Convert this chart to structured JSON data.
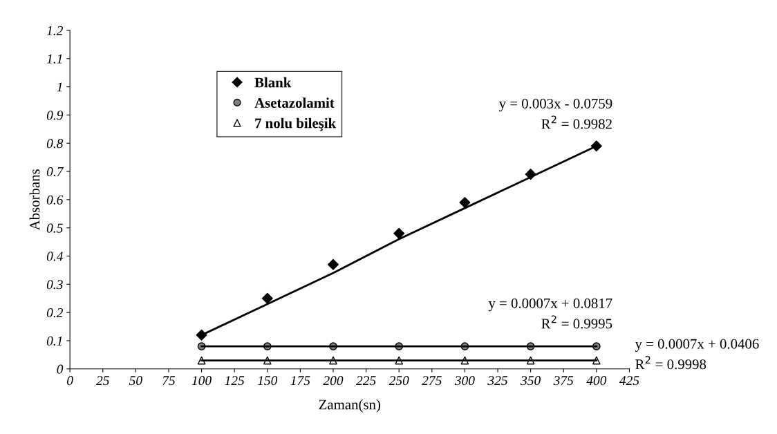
{
  "chart_data": {
    "type": "scatter",
    "xlabel": "Zaman(sn)",
    "ylabel": "Absorbans",
    "xlim": [
      0,
      425
    ],
    "xticks": [
      0,
      25,
      50,
      75,
      100,
      125,
      150,
      175,
      200,
      225,
      250,
      275,
      300,
      325,
      350,
      375,
      400,
      425
    ],
    "ylim": [
      0,
      1.2
    ],
    "yticks": [
      0,
      0.1,
      0.2,
      0.3,
      0.4,
      0.5,
      0.6,
      0.7,
      0.8,
      0.9,
      1,
      1.1,
      1.2
    ],
    "grid": false,
    "legend": "top left",
    "x": [
      100,
      150,
      200,
      250,
      300,
      350,
      400
    ],
    "series": [
      {
        "name": "Blank",
        "color": "#000000",
        "marker": "diamond",
        "values": [
          0.12,
          0.25,
          0.37,
          0.48,
          0.59,
          0.69,
          0.79
        ]
      },
      {
        "name": "Asetazolamit",
        "color": "#808080",
        "marker": "circle",
        "values": [
          0.08,
          0.08,
          0.08,
          0.08,
          0.08,
          0.08,
          0.08
        ]
      },
      {
        "name": "7 nolu bileşik",
        "color": "#ffffff",
        "marker": "triangle",
        "values": [
          0.03,
          0.03,
          0.03,
          0.03,
          0.03,
          0.03,
          0.03
        ]
      },
      {
        "type": "line",
        "color": "#000000",
        "values": [
          0.12,
          0.23,
          0.34,
          0.46,
          0.57,
          0.68,
          0.79
        ]
      },
      {
        "type": "line",
        "color": "#000000",
        "values": [
          0.08,
          0.08,
          0.08,
          0.08,
          0.08,
          0.08,
          0.08
        ]
      },
      {
        "type": "line",
        "color": "#000000",
        "values": [
          0.03,
          0.03,
          0.03,
          0.03,
          0.03,
          0.03,
          0.03
        ]
      }
    ],
    "annotations": [
      "y = 0.003x - 0.0759",
      "R$^{2}$ = 0.9982",
      "y = 0.0007x + 0.0817",
      "R$^{2}$ = 0.9995",
      "y = 0.0007x + 0.0406",
      "R$^{2}$ = 0.9998"
    ]
  }
}
